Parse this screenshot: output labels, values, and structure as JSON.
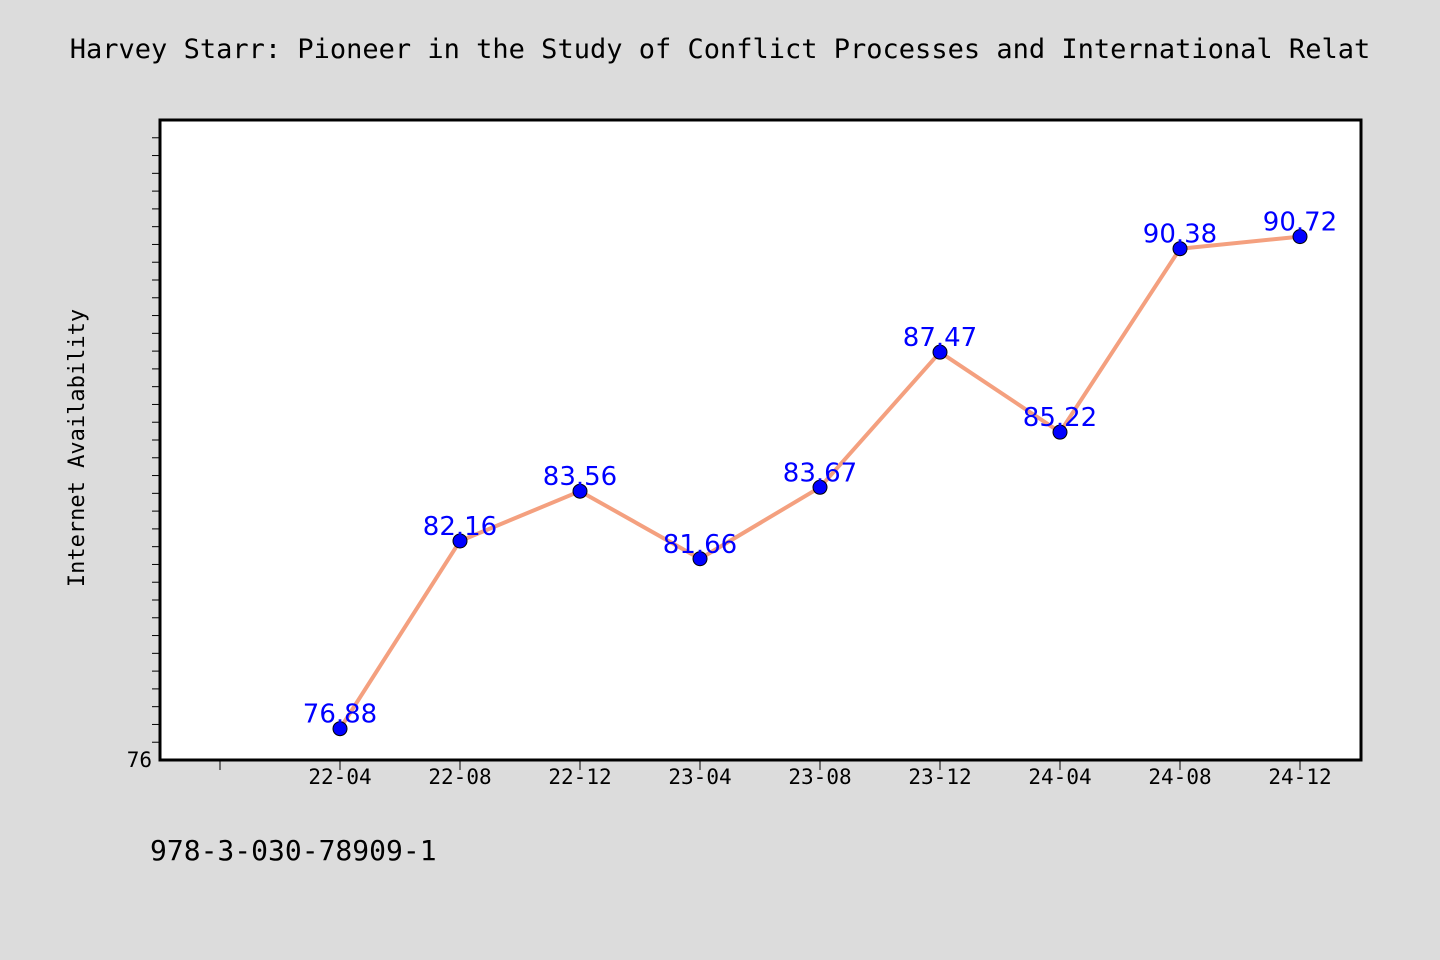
{
  "chart_data": {
    "type": "line",
    "title": "Harvey Starr: Pioneer in the Study of Conflict Processes and International Relat",
    "xlabel": "",
    "ylabel": "Internet Availability",
    "categories": [
      "22-04",
      "22-08",
      "22-12",
      "23-04",
      "23-08",
      "23-12",
      "24-04",
      "24-08",
      "24-12"
    ],
    "series": [
      {
        "values": [
          76.88,
          82.16,
          83.56,
          81.66,
          83.67,
          87.47,
          85.22,
          90.38,
          90.72
        ]
      }
    ],
    "data_labels": [
      "76.88",
      "82.16",
      "83.56",
      "81.66",
      "83.67",
      "87.47",
      "85.22",
      "90.38",
      "90.72"
    ],
    "ylim": [
      76,
      94
    ],
    "y_tick_labels": [
      "76"
    ],
    "grid": false,
    "line_color": "#f4a07f",
    "marker_color": "#0000ff",
    "label_color": "#0000ff"
  },
  "footer": {
    "isbn": "978-3-030-78909-1"
  }
}
